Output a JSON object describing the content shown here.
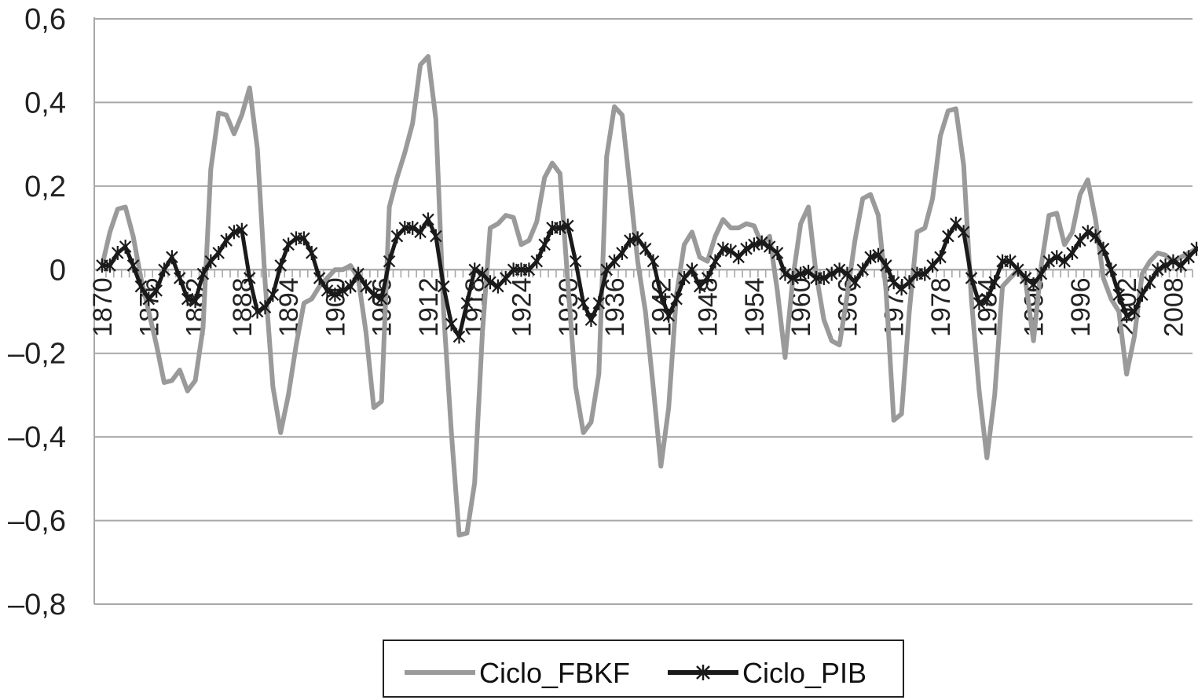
{
  "chart_data": {
    "type": "line",
    "x": [
      1870,
      1871,
      1872,
      1873,
      1874,
      1875,
      1876,
      1877,
      1878,
      1879,
      1880,
      1881,
      1882,
      1883,
      1884,
      1885,
      1886,
      1887,
      1888,
      1889,
      1890,
      1891,
      1892,
      1893,
      1894,
      1895,
      1896,
      1897,
      1898,
      1899,
      1900,
      1901,
      1902,
      1903,
      1904,
      1905,
      1906,
      1907,
      1908,
      1909,
      1910,
      1911,
      1912,
      1913,
      1914,
      1915,
      1916,
      1917,
      1918,
      1919,
      1920,
      1921,
      1922,
      1923,
      1924,
      1925,
      1926,
      1927,
      1928,
      1929,
      1930,
      1931,
      1932,
      1933,
      1934,
      1935,
      1936,
      1937,
      1938,
      1939,
      1940,
      1941,
      1942,
      1943,
      1944,
      1945,
      1946,
      1947,
      1948,
      1949,
      1950,
      1951,
      1952,
      1953,
      1954,
      1955,
      1956,
      1957,
      1958,
      1959,
      1960,
      1961,
      1962,
      1963,
      1964,
      1965,
      1966,
      1967,
      1968,
      1969,
      1970,
      1971,
      1972,
      1973,
      1974,
      1975,
      1976,
      1977,
      1978,
      1979,
      1980,
      1981,
      1982,
      1983,
      1984,
      1985,
      1986,
      1987,
      1988,
      1989,
      1990,
      1991,
      1992,
      1993,
      1994,
      1995,
      1996,
      1997,
      1998,
      1999,
      2000,
      2001,
      2002,
      2003,
      2004,
      2005,
      2006,
      2007,
      2008,
      2009,
      2010,
      2011
    ],
    "series": [
      {
        "name": "Ciclo_FBKF",
        "color": "#9a9a9a",
        "values": [
          0.01,
          0.09,
          0.145,
          0.15,
          0.08,
          -0.02,
          -0.1,
          -0.18,
          -0.27,
          -0.265,
          -0.24,
          -0.29,
          -0.265,
          -0.14,
          0.24,
          0.375,
          0.37,
          0.325,
          0.37,
          0.435,
          0.29,
          -0.03,
          -0.28,
          -0.39,
          -0.3,
          -0.18,
          -0.08,
          -0.07,
          -0.04,
          -0.02,
          0.0,
          0.0,
          0.01,
          -0.02,
          -0.15,
          -0.33,
          -0.315,
          0.15,
          0.22,
          0.28,
          0.35,
          0.49,
          0.51,
          0.36,
          -0.1,
          -0.39,
          -0.635,
          -0.63,
          -0.51,
          -0.15,
          0.1,
          0.11,
          0.13,
          0.125,
          0.06,
          0.07,
          0.115,
          0.22,
          0.255,
          0.23,
          -0.03,
          -0.28,
          -0.39,
          -0.365,
          -0.25,
          0.27,
          0.39,
          0.37,
          0.2,
          0.02,
          -0.1,
          -0.28,
          -0.47,
          -0.33,
          -0.06,
          0.06,
          0.09,
          0.03,
          0.02,
          0.08,
          0.12,
          0.1,
          0.1,
          0.11,
          0.105,
          0.06,
          0.08,
          -0.05,
          -0.21,
          -0.02,
          0.11,
          0.15,
          -0.01,
          -0.12,
          -0.17,
          -0.18,
          -0.06,
          0.07,
          0.17,
          0.18,
          0.13,
          -0.05,
          -0.36,
          -0.345,
          -0.1,
          0.09,
          0.1,
          0.17,
          0.32,
          0.38,
          0.385,
          0.25,
          -0.07,
          -0.29,
          -0.45,
          -0.3,
          -0.04,
          -0.02,
          0.0,
          -0.03,
          -0.17,
          0.01,
          0.13,
          0.135,
          0.06,
          0.09,
          0.18,
          0.215,
          0.12,
          -0.02,
          -0.07,
          -0.1,
          -0.25,
          -0.16,
          -0.01,
          0.02,
          0.04,
          0.035,
          0.02,
          0.03,
          0.04,
          0.05
        ]
      },
      {
        "name": "Ciclo_PIB",
        "color": "#1a1a1a",
        "values": [
          0.01,
          0.01,
          0.04,
          0.055,
          0.01,
          -0.04,
          -0.07,
          -0.05,
          0.0,
          0.03,
          -0.02,
          -0.07,
          -0.075,
          -0.01,
          0.02,
          0.04,
          0.07,
          0.09,
          0.095,
          -0.02,
          -0.1,
          -0.09,
          -0.06,
          0.01,
          0.06,
          0.075,
          0.075,
          0.04,
          -0.02,
          -0.05,
          -0.06,
          -0.05,
          -0.04,
          -0.01,
          -0.04,
          -0.06,
          -0.07,
          0.02,
          0.08,
          0.1,
          0.1,
          0.09,
          0.12,
          0.08,
          -0.04,
          -0.13,
          -0.16,
          -0.08,
          0.0,
          -0.01,
          -0.03,
          -0.04,
          -0.02,
          0.0,
          0.0,
          0.0,
          0.02,
          0.06,
          0.1,
          0.1,
          0.105,
          0.02,
          -0.08,
          -0.12,
          -0.08,
          0.0,
          0.02,
          0.04,
          0.07,
          0.075,
          0.05,
          0.02,
          -0.06,
          -0.11,
          -0.07,
          -0.02,
          0.0,
          -0.04,
          -0.02,
          0.02,
          0.05,
          0.045,
          0.03,
          0.05,
          0.06,
          0.065,
          0.055,
          0.04,
          -0.01,
          -0.02,
          -0.01,
          -0.005,
          -0.02,
          -0.02,
          -0.01,
          0.0,
          -0.01,
          -0.03,
          0.0,
          0.03,
          0.035,
          0.01,
          -0.03,
          -0.045,
          -0.03,
          -0.01,
          -0.01,
          0.01,
          0.03,
          0.08,
          0.11,
          0.09,
          -0.02,
          -0.08,
          -0.07,
          -0.03,
          0.02,
          0.02,
          0.0,
          -0.02,
          -0.035,
          -0.01,
          0.02,
          0.03,
          0.02,
          0.04,
          0.07,
          0.09,
          0.08,
          0.05,
          0.0,
          -0.06,
          -0.11,
          -0.1,
          -0.06,
          -0.03,
          0.0,
          0.01,
          0.02,
          0.01,
          0.03,
          0.05
        ]
      }
    ],
    "ylim": [
      -0.8,
      0.6
    ],
    "yticks": [
      -0.8,
      -0.6,
      -0.4,
      -0.2,
      0,
      0.2,
      0.4,
      0.6
    ],
    "ytick_labels": [
      "–0,8",
      "–0,6",
      "–0,4",
      "–0,2",
      "0",
      "0,2",
      "0,4",
      "0,6"
    ],
    "xtick_labels": [
      "1870",
      "1876",
      "1882",
      "1888",
      "1894",
      "1900",
      "1906",
      "1912",
      "1918",
      "1924",
      "1930",
      "1936",
      "1942",
      "1948",
      "1954",
      "1960",
      "1966",
      "1972",
      "1978",
      "1984",
      "1990",
      "1996",
      "2002",
      "2008"
    ],
    "grid": true,
    "legend_position": "bottom"
  }
}
